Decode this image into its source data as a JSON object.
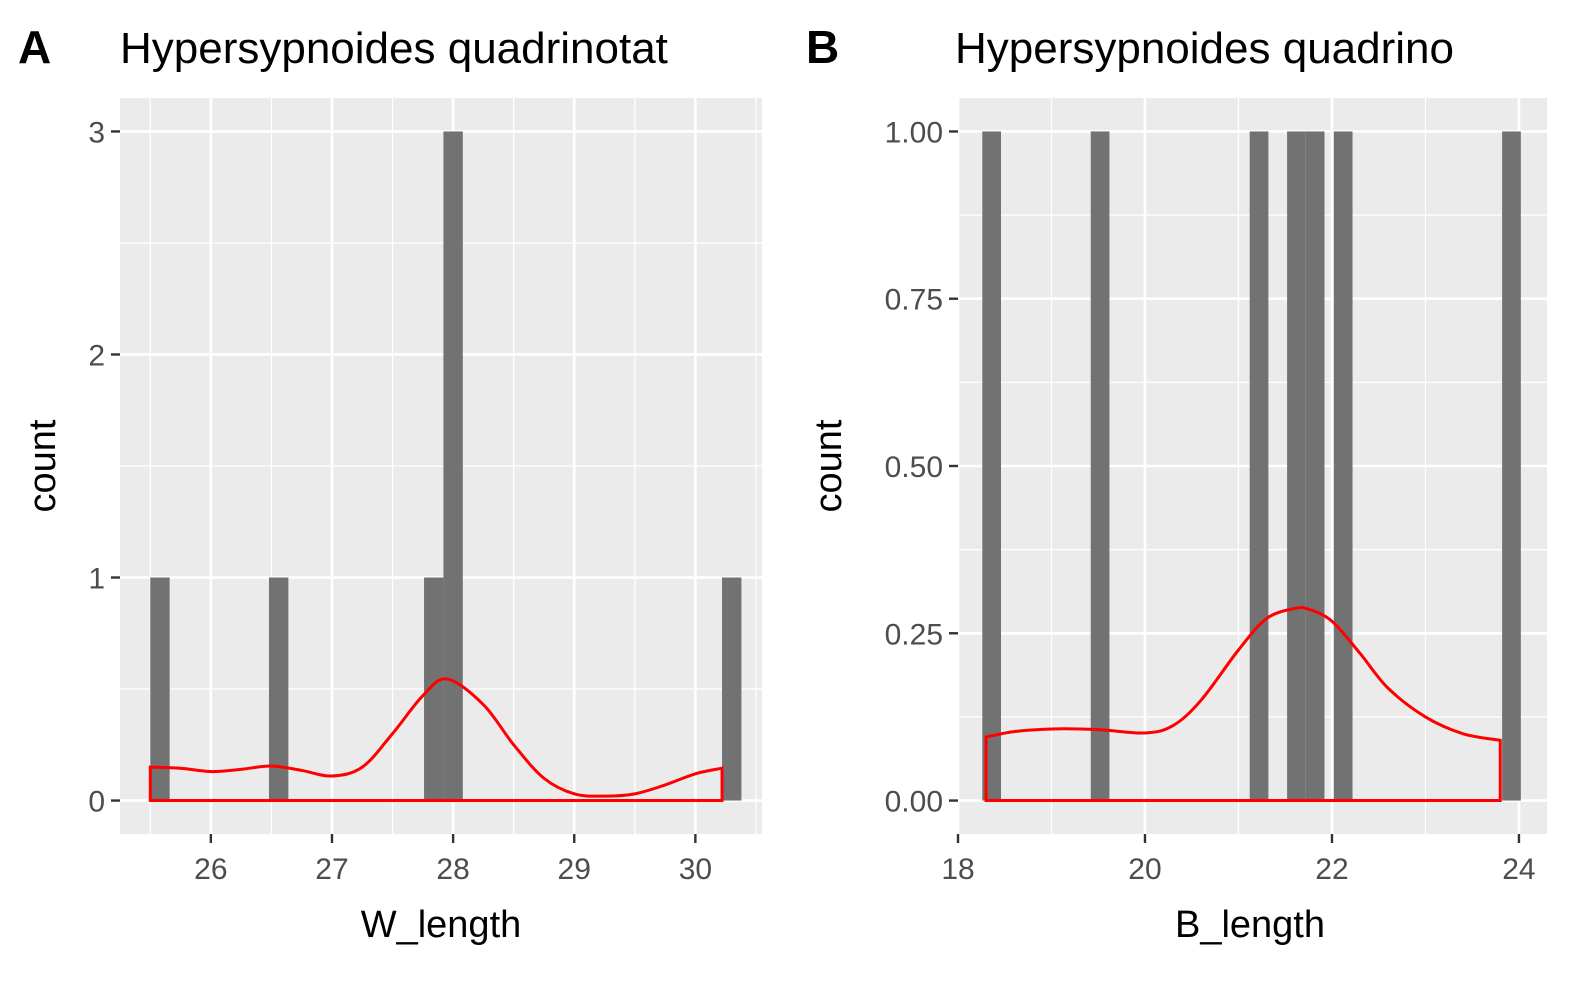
{
  "chart_data": [
    {
      "type": "bar",
      "panel_label": "A",
      "title": "Hypersypnoides quadrinotat",
      "xlabel": "W_length",
      "ylabel": "count",
      "xlim": [
        25.25,
        30.55
      ],
      "ylim": [
        -0.15,
        3.15
      ],
      "x_ticks": [
        26,
        27,
        28,
        29,
        30
      ],
      "y_ticks": [
        0,
        1,
        2,
        3
      ],
      "y_tick_labels": [
        "0",
        "1",
        "2",
        "3"
      ],
      "bars": [
        {
          "x0": 25.5,
          "x1": 25.66,
          "count": 1
        },
        {
          "x0": 26.48,
          "x1": 26.64,
          "count": 1
        },
        {
          "x0": 27.76,
          "x1": 27.92,
          "count": 1
        },
        {
          "x0": 27.92,
          "x1": 28.08,
          "count": 3
        },
        {
          "x0": 30.22,
          "x1": 30.38,
          "count": 1
        }
      ],
      "density_curve": {
        "color": "#ff0000",
        "x": [
          25.5,
          25.75,
          26.0,
          26.25,
          26.5,
          26.75,
          27.0,
          27.25,
          27.5,
          27.75,
          27.95,
          28.25,
          28.5,
          28.75,
          29.0,
          29.25,
          29.5,
          29.75,
          30.0,
          30.22
        ],
        "y": [
          0.15,
          0.145,
          0.13,
          0.14,
          0.155,
          0.135,
          0.11,
          0.15,
          0.3,
          0.47,
          0.545,
          0.43,
          0.25,
          0.1,
          0.03,
          0.02,
          0.03,
          0.07,
          0.12,
          0.145
        ]
      },
      "bar_color": "#727272",
      "panel_background": "#ebebeb"
    },
    {
      "type": "bar",
      "panel_label": "B",
      "title": "Hypersypnoides quadrino",
      "xlabel": "B_length",
      "ylabel": "count",
      "xlim": [
        18.0,
        24.3
      ],
      "ylim": [
        -0.05,
        1.05
      ],
      "x_ticks": [
        18,
        20,
        22,
        24
      ],
      "y_ticks": [
        0,
        0.25,
        0.5,
        0.75,
        1.0
      ],
      "y_tick_labels": [
        "0.00",
        "0.25",
        "0.50",
        "0.75",
        "1.00"
      ],
      "bars": [
        {
          "x0": 18.26,
          "x1": 18.46,
          "count": 1
        },
        {
          "x0": 19.42,
          "x1": 19.62,
          "count": 1
        },
        {
          "x0": 21.12,
          "x1": 21.32,
          "count": 1
        },
        {
          "x0": 21.52,
          "x1": 21.72,
          "count": 1
        },
        {
          "x0": 21.72,
          "x1": 21.92,
          "count": 1
        },
        {
          "x0": 22.02,
          "x1": 22.22,
          "count": 1
        },
        {
          "x0": 23.82,
          "x1": 24.02,
          "count": 1
        }
      ],
      "density_curve": {
        "color": "#ff0000",
        "x": [
          18.3,
          18.6,
          19.0,
          19.5,
          20.0,
          20.3,
          20.6,
          21.0,
          21.3,
          21.6,
          21.75,
          22.0,
          22.3,
          22.6,
          23.0,
          23.4,
          23.8
        ],
        "y": [
          0.095,
          0.103,
          0.107,
          0.106,
          0.101,
          0.112,
          0.15,
          0.225,
          0.272,
          0.287,
          0.286,
          0.268,
          0.22,
          0.168,
          0.125,
          0.1,
          0.09
        ]
      },
      "bar_color": "#727272",
      "panel_background": "#ebebeb"
    }
  ]
}
